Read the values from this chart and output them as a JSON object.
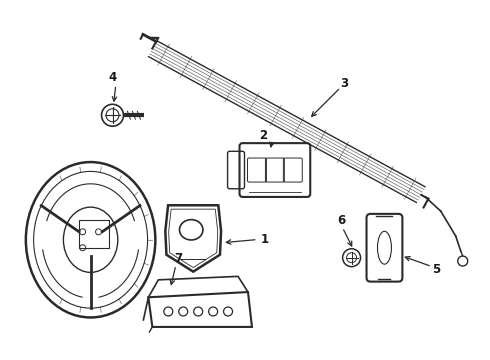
{
  "bg_color": "#ffffff",
  "line_color": "#2a2a2a",
  "label_color": "#1a1a1a",
  "fig_width": 4.9,
  "fig_height": 3.6,
  "dpi": 100,
  "label_fontsize": 8.5
}
